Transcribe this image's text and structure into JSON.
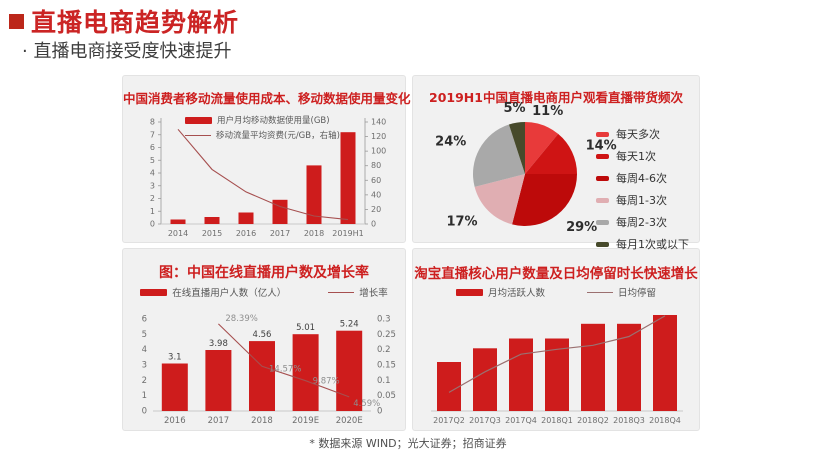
{
  "page": {
    "title": "直播电商趋势解析",
    "subtitle": "· 直播电商接受度快速提升",
    "footnote": "* 数据来源 WIND；光大证券；招商证券",
    "colors": {
      "accent_red": "#cb2424",
      "bar_red": "#ce1c1c",
      "card_bg": "#f1f1f1"
    }
  },
  "chart_data": [
    {
      "id": "mobile-data-usage",
      "type": "bar+line",
      "title": "中国消费者移动流量使用成本、移动数据使用量变化",
      "legend": [
        {
          "label": "用户月均移动数据使用量(GB)",
          "type": "bar",
          "color": "#ce1c1c"
        },
        {
          "label": "移动流量平均资费(元/GB，右轴)",
          "type": "line",
          "color": "#a64f4f"
        }
      ],
      "categories": [
        "2014",
        "2015",
        "2016",
        "2017",
        "2018",
        "2019H1"
      ],
      "bar_values": [
        0.35,
        0.55,
        0.9,
        1.9,
        4.6,
        7.2
      ],
      "line_values": [
        130,
        75,
        44,
        24,
        11,
        6
      ],
      "left_axis": {
        "min": 0,
        "max": 8,
        "step": 1
      },
      "right_axis": {
        "min": 0,
        "max": 140,
        "step": 20
      }
    },
    {
      "id": "watch-frequency",
      "type": "pie",
      "title": "2019H1中国直播电商用户观看直播带货频次",
      "slices": [
        {
          "label": "每天多次",
          "value": 11,
          "pct_label": "11%",
          "color": "#e83a3a"
        },
        {
          "label": "每天1次",
          "value": 14,
          "pct_label": "14%",
          "color": "#cf1414"
        },
        {
          "label": "每周4-6次",
          "value": 29,
          "pct_label": "29%",
          "color": "#bd0a0a"
        },
        {
          "label": "每周1-3次",
          "value": 17,
          "pct_label": "17%",
          "color": "#e0aeb2"
        },
        {
          "label": "每周2-3次",
          "value": 24,
          "pct_label": "24%",
          "color": "#a9a9a9"
        },
        {
          "label": "每月1次或以下",
          "value": 5,
          "pct_label": "5%",
          "color": "#474a2b"
        }
      ],
      "legend_position": "right"
    },
    {
      "id": "online-live-users",
      "type": "bar+line",
      "title": "图：中国在线直播用户数及增长率",
      "legend": [
        {
          "label": "在线直播用户人数（亿人）",
          "type": "bar",
          "color": "#ce1c1c"
        },
        {
          "label": "增长率",
          "type": "line",
          "color": "#a64f4f"
        }
      ],
      "categories": [
        "2016",
        "2017",
        "2018",
        "2019E",
        "2020E"
      ],
      "bar_values": [
        3.1,
        3.98,
        4.56,
        5.01,
        5.24
      ],
      "bar_labels": [
        "3.1",
        "3.98",
        "4.56",
        "5.01",
        "5.24"
      ],
      "line_values": [
        null,
        0.2839,
        0.1457,
        0.0987,
        0.0459
      ],
      "line_labels": [
        "",
        "28.39%",
        "14.57%",
        "9.87%",
        "4.59%"
      ],
      "left_axis": {
        "min": 0,
        "max": 6,
        "step": 1
      },
      "right_axis": {
        "min": 0,
        "max": 0.3,
        "step": 0.05
      }
    },
    {
      "id": "taobao-live-core-users",
      "type": "bar+line",
      "title": "淘宝直播核心用户数量及日均停留时长快速增长",
      "legend": [
        {
          "label": "月均活跃人数",
          "type": "bar",
          "color": "#ce1c1c"
        },
        {
          "label": "日均停留",
          "type": "line",
          "color": "#9b7070"
        }
      ],
      "categories": [
        "2017Q2",
        "2017Q3",
        "2017Q4",
        "2018Q1",
        "2018Q2",
        "2018Q3",
        "2018Q4"
      ],
      "bar_values": [
        0.5,
        0.64,
        0.74,
        0.74,
        0.89,
        0.89,
        0.98
      ],
      "line_values": [
        0.19,
        0.4,
        0.58,
        0.63,
        0.67,
        0.76,
        0.97
      ],
      "values_note": "relative heights; chart displays no value axis",
      "left_axis": null,
      "right_axis": null
    }
  ]
}
